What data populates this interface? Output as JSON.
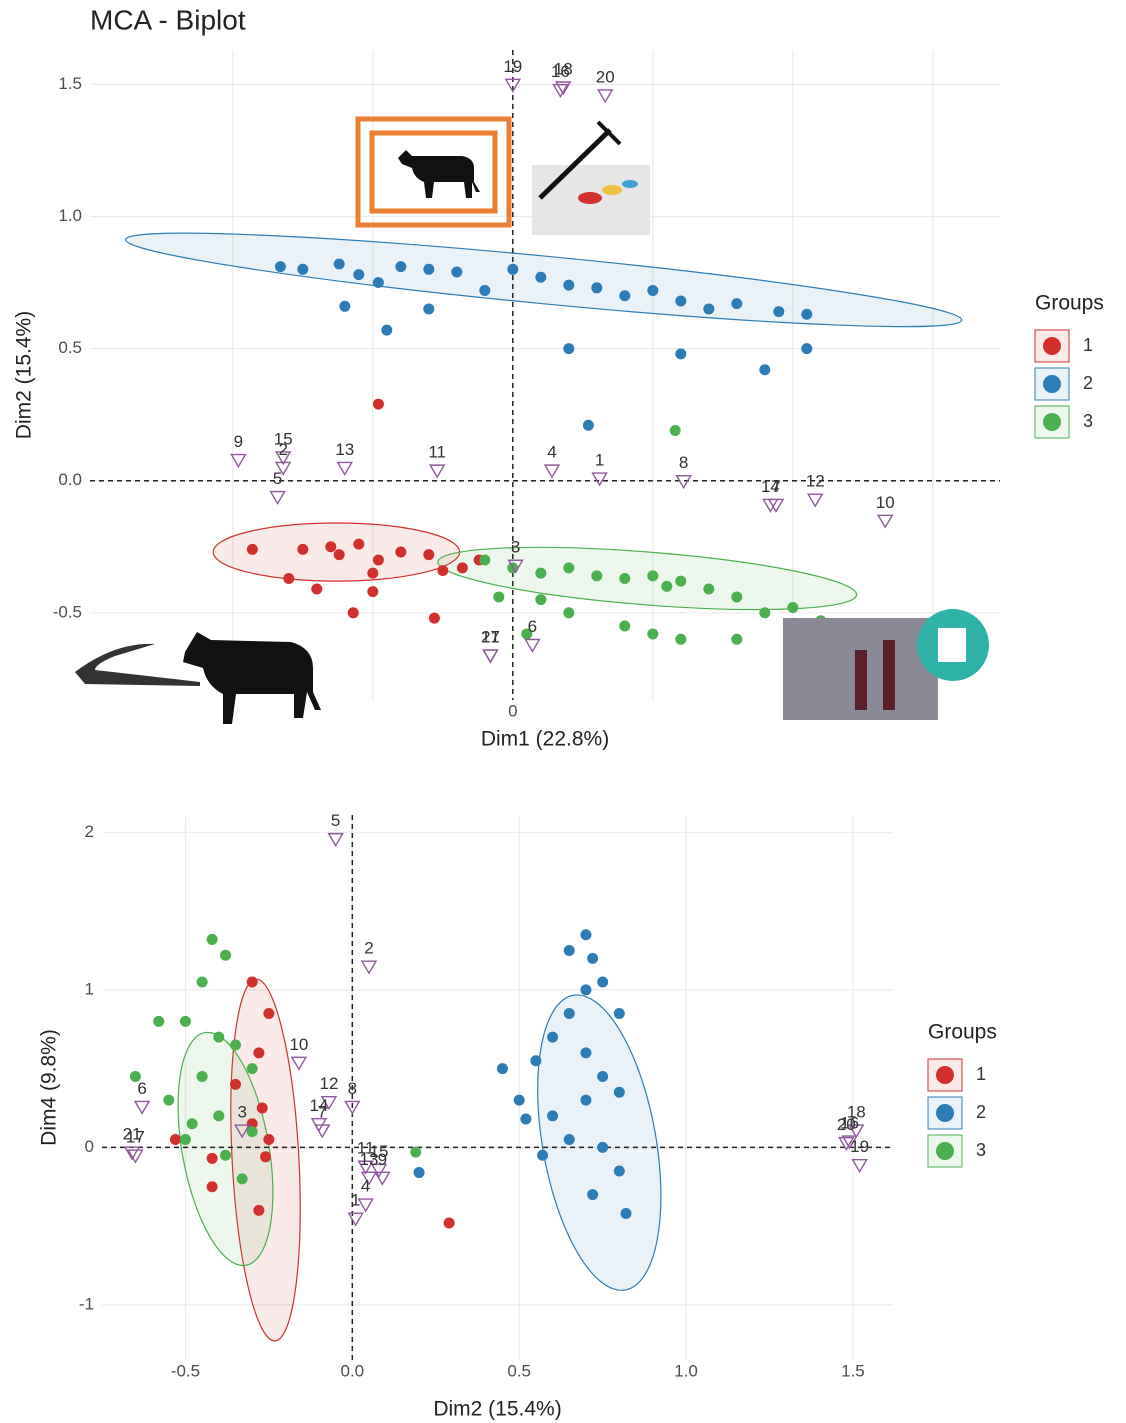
{
  "chart_data": [
    {
      "type": "scatter",
      "title": "MCA - Biplot",
      "x_label": "Dim1 (22.8%)",
      "y_label": "Dim2 (15.4%)",
      "xlim": [
        -1.51,
        1.74
      ],
      "ylim": [
        -0.83,
        1.63
      ],
      "xticks": [
        0
      ],
      "x_gridlines": [
        -1,
        -0.5,
        0.5,
        1,
        1.5
      ],
      "yticks": [
        {
          "value": -0.5,
          "label": "-0.5"
        },
        {
          "value": 0,
          "label": "0.0"
        },
        0.5,
        {
          "value": 1,
          "label": "1.0"
        },
        1.5
      ],
      "grid": true,
      "origin_lines": true,
      "legend": {
        "title": "Groups",
        "position": "right"
      },
      "series": [
        {
          "name": "1",
          "color": "#d32f2f",
          "x": [
            -0.93,
            -0.75,
            -0.65,
            -0.62,
            -0.55,
            -0.48,
            -0.4,
            -0.3,
            -0.8,
            -0.7,
            -0.5,
            -0.5,
            -0.57,
            -0.25,
            -0.18,
            -0.28,
            -0.48,
            -0.12
          ],
          "y": [
            -0.26,
            -0.26,
            -0.25,
            -0.28,
            -0.24,
            -0.3,
            -0.27,
            -0.28,
            -0.37,
            -0.41,
            -0.35,
            -0.42,
            -0.5,
            -0.34,
            -0.33,
            -0.52,
            0.29,
            -0.3
          ],
          "ellipse": {
            "cx": -0.63,
            "cy": -0.27,
            "rx": 0.44,
            "ry": 0.11,
            "angle": 0
          }
        },
        {
          "name": "2",
          "color": "#2e7cb5",
          "x": [
            -0.83,
            -0.75,
            -0.62,
            -0.55,
            -0.48,
            -0.4,
            -0.3,
            -0.2,
            -0.1,
            0,
            0.1,
            0.2,
            0.3,
            0.4,
            0.5,
            0.6,
            0.7,
            0.8,
            0.95,
            1.05,
            -0.6,
            -0.45,
            -0.3,
            0.2,
            0.6,
            0.9,
            1.05,
            0.27
          ],
          "y": [
            0.81,
            0.8,
            0.82,
            0.78,
            0.75,
            0.81,
            0.8,
            0.79,
            0.72,
            0.8,
            0.77,
            0.74,
            0.73,
            0.7,
            0.72,
            0.68,
            0.65,
            0.67,
            0.64,
            0.63,
            0.66,
            0.57,
            0.65,
            0.5,
            0.48,
            0.42,
            0.5,
            0.21
          ],
          "ellipse": {
            "cx": 0.11,
            "cy": 0.76,
            "rx": 1.5,
            "ry": 0.09,
            "angle": 5.5
          }
        },
        {
          "name": "3",
          "color": "#4caf50",
          "x": [
            -0.1,
            0,
            0.1,
            0.2,
            0.3,
            0.4,
            0.5,
            0.55,
            0.6,
            0.7,
            0.8,
            0.9,
            1.0,
            1.1,
            0.1,
            0.2,
            0.4,
            0.5,
            0.6,
            0.8,
            0.05,
            0.58,
            -0.05
          ],
          "y": [
            -0.3,
            -0.33,
            -0.35,
            -0.33,
            -0.36,
            -0.37,
            -0.36,
            -0.4,
            -0.38,
            -0.41,
            -0.44,
            -0.5,
            -0.48,
            -0.53,
            -0.45,
            -0.5,
            -0.55,
            -0.58,
            -0.6,
            -0.6,
            -0.58,
            0.19,
            -0.44
          ],
          "ellipse": {
            "cx": 0.48,
            "cy": -0.37,
            "rx": 0.75,
            "ry": 0.1,
            "angle": 4.5
          }
        }
      ],
      "variables": {
        "color": "#8e5a9a",
        "labels": [
          "19",
          "18",
          "16",
          "20",
          "9",
          "15",
          "2",
          "5",
          "13",
          "11",
          "4",
          "1",
          "8",
          "14",
          "7",
          "12",
          "10",
          "3",
          "6",
          "21",
          "17"
        ],
        "x": [
          0,
          0.18,
          0.17,
          0.33,
          -0.98,
          -0.82,
          -0.82,
          -0.84,
          -0.6,
          -0.27,
          0.14,
          0.31,
          0.61,
          0.92,
          0.94,
          1.08,
          1.33,
          0.01,
          0.07,
          -0.08,
          -0.08
        ],
        "y": [
          1.5,
          1.49,
          1.48,
          1.46,
          0.08,
          0.09,
          0.05,
          -0.06,
          0.05,
          0.04,
          0.04,
          0.01,
          0,
          -0.09,
          -0.09,
          -0.07,
          -0.15,
          -0.32,
          -0.62,
          -0.66,
          -0.66
        ]
      }
    },
    {
      "type": "scatter",
      "x_label": "Dim2 (15.4%)",
      "y_label": "Dim4 (9.8%)",
      "xlim": [
        -0.75,
        1.62
      ],
      "ylim": [
        -1.35,
        2.11
      ],
      "xticks": [
        -0.5,
        {
          "value": 0,
          "label": "0.0"
        },
        0.5,
        {
          "value": 1,
          "label": "1.0"
        },
        1.5
      ],
      "x_gridlines": [],
      "yticks": [
        -1,
        0,
        1,
        2
      ],
      "grid": true,
      "origin_lines": true,
      "legend": {
        "title": "Groups",
        "position": "right"
      },
      "series": [
        {
          "name": "1",
          "color": "#d32f2f",
          "x": [
            -0.3,
            -0.25,
            -0.28,
            -0.35,
            -0.27,
            -0.3,
            -0.25,
            -0.26,
            -0.42,
            -0.53,
            -0.28,
            -0.42,
            0.29
          ],
          "y": [
            1.05,
            0.85,
            0.6,
            0.4,
            0.25,
            0.15,
            0.05,
            -0.06,
            -0.07,
            0.05,
            -0.4,
            -0.25,
            -0.48
          ],
          "ellipse": {
            "cx": -0.26,
            "cy": -0.08,
            "rx": 0.1,
            "ry": 1.15,
            "angle": -3
          }
        },
        {
          "name": "2",
          "color": "#2e7cb5",
          "x": [
            0.7,
            0.65,
            0.72,
            0.75,
            0.7,
            0.8,
            0.65,
            0.6,
            0.7,
            0.55,
            0.75,
            0.8,
            0.7,
            0.6,
            0.65,
            0.75,
            0.8,
            0.72,
            0.82,
            0.5,
            0.45,
            0.52,
            0.57,
            0.2
          ],
          "y": [
            1.35,
            1.25,
            1.2,
            1.05,
            1.0,
            0.85,
            0.85,
            0.7,
            0.6,
            0.55,
            0.45,
            0.35,
            0.3,
            0.2,
            0.05,
            0,
            -0.15,
            -0.3,
            -0.42,
            0.3,
            0.5,
            0.18,
            -0.05,
            -0.16
          ],
          "ellipse": {
            "cx": 0.74,
            "cy": 0.03,
            "rx": 0.17,
            "ry": 0.95,
            "angle": -10
          }
        },
        {
          "name": "3",
          "color": "#4caf50",
          "x": [
            -0.42,
            -0.38,
            -0.45,
            -0.5,
            -0.58,
            -0.4,
            -0.35,
            -0.3,
            -0.45,
            -0.65,
            -0.55,
            -0.4,
            -0.48,
            -0.3,
            -0.38,
            -0.33,
            -0.5,
            0.19
          ],
          "y": [
            1.32,
            1.22,
            1.05,
            0.8,
            0.8,
            0.7,
            0.65,
            0.5,
            0.45,
            0.45,
            0.3,
            0.2,
            0.15,
            0.1,
            -0.05,
            -0.2,
            0.05,
            -0.03
          ],
          "ellipse": {
            "cx": -0.38,
            "cy": -0.01,
            "rx": 0.13,
            "ry": 0.75,
            "angle": -10
          }
        }
      ],
      "variables": {
        "color": "#8e5a9a",
        "labels": [
          "5",
          "2",
          "10",
          "12",
          "8",
          "14",
          "7",
          "6",
          "3",
          "21",
          "17",
          "11",
          "15",
          "13",
          "9",
          "4",
          "1",
          "18",
          "20",
          "16",
          "19"
        ],
        "x": [
          -0.05,
          0.05,
          -0.16,
          -0.07,
          0,
          -0.1,
          -0.09,
          -0.63,
          -0.33,
          -0.66,
          -0.65,
          0.04,
          0.08,
          0.05,
          0.09,
          0.04,
          0.01,
          1.51,
          1.48,
          1.49,
          1.52
        ],
        "y": [
          1.96,
          1.15,
          0.54,
          0.29,
          0.26,
          0.15,
          0.11,
          0.26,
          0.11,
          -0.03,
          -0.05,
          -0.12,
          -0.14,
          -0.19,
          -0.19,
          -0.36,
          -0.45,
          0.11,
          0.03,
          0.04,
          -0.11
        ]
      }
    }
  ]
}
